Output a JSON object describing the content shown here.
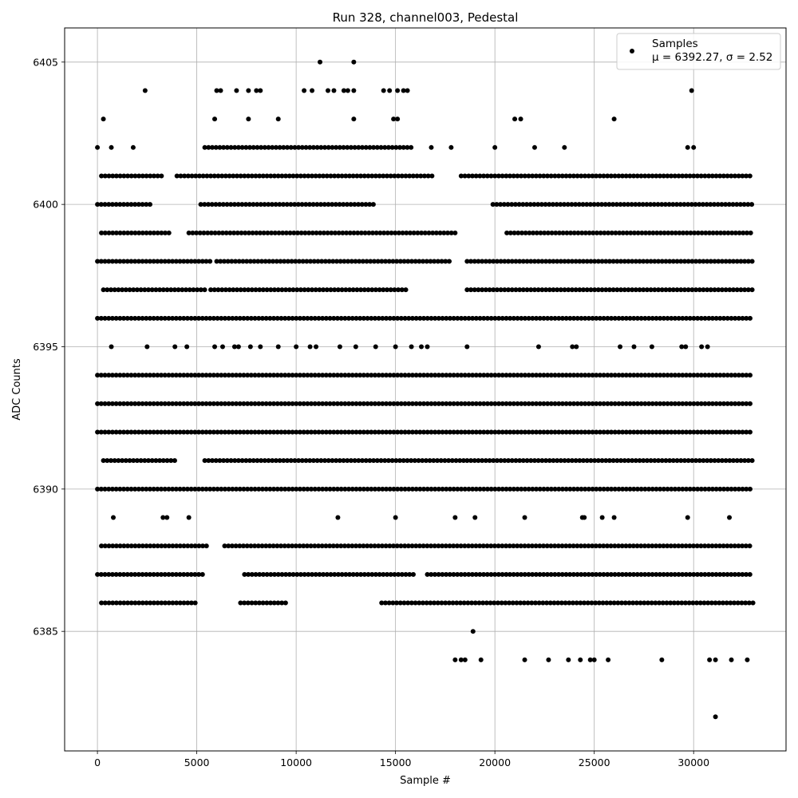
{
  "chart_data": {
    "type": "scatter",
    "title": "Run 328, channel003, Pedestal",
    "xlabel": "Sample #",
    "ylabel": "ADC Counts",
    "xlim": [
      -1650,
      34650
    ],
    "ylim": [
      6380.8,
      6406.2
    ],
    "xticks": [
      0,
      5000,
      10000,
      15000,
      20000,
      25000,
      30000
    ],
    "yticks": [
      6385,
      6390,
      6395,
      6400,
      6405
    ],
    "grid": true,
    "legend_position": "top-right",
    "marker_color": "#000000",
    "sample_count": 33000,
    "series": [
      {
        "name": "Samples",
        "legend_stats": "μ = 6392.27, σ = 2.52",
        "level_segments": [
          {
            "y": 6390,
            "segments": [
              [
                0,
                33000
              ]
            ]
          },
          {
            "y": 6392,
            "segments": [
              [
                0,
                33000
              ]
            ]
          },
          {
            "y": 6393,
            "segments": [
              [
                0,
                33000
              ]
            ]
          },
          {
            "y": 6394,
            "segments": [
              [
                0,
                33000
              ]
            ]
          },
          {
            "y": 6396,
            "segments": [
              [
                0,
                33000
              ]
            ]
          },
          {
            "y": 6387,
            "segments": [
              [
                0,
                5400
              ],
              [
                7400,
                16000
              ],
              [
                16600,
                33000
              ]
            ]
          },
          {
            "y": 6388,
            "segments": [
              [
                200,
                5600
              ],
              [
                6400,
                33000
              ]
            ]
          },
          {
            "y": 6398,
            "segments": [
              [
                0,
                5800
              ],
              [
                6000,
                17800
              ],
              [
                18600,
                33000
              ]
            ]
          },
          {
            "y": 6397,
            "segments": [
              [
                300,
                5500
              ],
              [
                5700,
                15700
              ],
              [
                18600,
                33000
              ]
            ]
          },
          {
            "y": 6391,
            "segments": [
              [
                300,
                4000
              ],
              [
                5400,
                18600
              ],
              [
                18600,
                33000
              ]
            ]
          },
          {
            "y": 6386,
            "segments": [
              [
                200,
                5000
              ],
              [
                7200,
                9500
              ],
              [
                14300,
                33000
              ]
            ]
          },
          {
            "y": 6399,
            "segments": [
              [
                200,
                3600
              ],
              [
                4600,
                18000
              ],
              [
                20600,
                33000
              ]
            ]
          },
          {
            "y": 6401,
            "segments": [
              [
                200,
                3400
              ],
              [
                4000,
                17000
              ],
              [
                18300,
                33000
              ]
            ]
          },
          {
            "y": 6400,
            "segments": [
              [
                0,
                2800
              ],
              [
                5200,
                14000
              ],
              [
                19900,
                33000
              ]
            ]
          },
          {
            "y": 6402,
            "segments": [
              [
                5400,
                15900
              ]
            ]
          }
        ],
        "points": [
          [
            0,
            6402
          ],
          [
            700,
            6402
          ],
          [
            1800,
            6402
          ],
          [
            16800,
            6402
          ],
          [
            17800,
            6402
          ],
          [
            20000,
            6402
          ],
          [
            22000,
            6402
          ],
          [
            23500,
            6402
          ],
          [
            29700,
            6402
          ],
          [
            30000,
            6402
          ],
          [
            300,
            6403
          ],
          [
            5900,
            6403
          ],
          [
            7600,
            6403
          ],
          [
            9100,
            6403
          ],
          [
            12900,
            6403
          ],
          [
            14900,
            6403
          ],
          [
            15100,
            6403
          ],
          [
            21000,
            6403
          ],
          [
            21300,
            6403
          ],
          [
            26000,
            6403
          ],
          [
            2400,
            6404
          ],
          [
            6000,
            6404
          ],
          [
            6200,
            6404
          ],
          [
            7000,
            6404
          ],
          [
            7600,
            6404
          ],
          [
            8000,
            6404
          ],
          [
            8200,
            6404
          ],
          [
            10400,
            6404
          ],
          [
            10800,
            6404
          ],
          [
            11600,
            6404
          ],
          [
            11900,
            6404
          ],
          [
            12400,
            6404
          ],
          [
            12600,
            6404
          ],
          [
            12900,
            6404
          ],
          [
            14400,
            6404
          ],
          [
            14700,
            6404
          ],
          [
            15100,
            6404
          ],
          [
            15400,
            6404
          ],
          [
            15600,
            6404
          ],
          [
            29900,
            6404
          ],
          [
            11200,
            6405
          ],
          [
            12900,
            6405
          ],
          [
            700,
            6395
          ],
          [
            2500,
            6395
          ],
          [
            3900,
            6395
          ],
          [
            4500,
            6395
          ],
          [
            5900,
            6395
          ],
          [
            6300,
            6395
          ],
          [
            6900,
            6395
          ],
          [
            7100,
            6395
          ],
          [
            7700,
            6395
          ],
          [
            8200,
            6395
          ],
          [
            9100,
            6395
          ],
          [
            10000,
            6395
          ],
          [
            10700,
            6395
          ],
          [
            11000,
            6395
          ],
          [
            12200,
            6395
          ],
          [
            13000,
            6395
          ],
          [
            14000,
            6395
          ],
          [
            15000,
            6395
          ],
          [
            15800,
            6395
          ],
          [
            16300,
            6395
          ],
          [
            16600,
            6395
          ],
          [
            18600,
            6395
          ],
          [
            22200,
            6395
          ],
          [
            23900,
            6395
          ],
          [
            24100,
            6395
          ],
          [
            26300,
            6395
          ],
          [
            27000,
            6395
          ],
          [
            27900,
            6395
          ],
          [
            29400,
            6395
          ],
          [
            29600,
            6395
          ],
          [
            30400,
            6395
          ],
          [
            30700,
            6395
          ],
          [
            800,
            6389
          ],
          [
            3300,
            6389
          ],
          [
            3500,
            6389
          ],
          [
            4600,
            6389
          ],
          [
            12100,
            6389
          ],
          [
            15000,
            6389
          ],
          [
            18000,
            6389
          ],
          [
            19000,
            6389
          ],
          [
            21500,
            6389
          ],
          [
            24400,
            6389
          ],
          [
            24500,
            6389
          ],
          [
            25400,
            6389
          ],
          [
            26000,
            6389
          ],
          [
            29700,
            6389
          ],
          [
            31800,
            6389
          ],
          [
            18900,
            6385
          ],
          [
            18000,
            6384
          ],
          [
            18300,
            6384
          ],
          [
            18500,
            6384
          ],
          [
            19300,
            6384
          ],
          [
            21500,
            6384
          ],
          [
            22700,
            6384
          ],
          [
            23700,
            6384
          ],
          [
            24300,
            6384
          ],
          [
            24800,
            6384
          ],
          [
            25000,
            6384
          ],
          [
            25700,
            6384
          ],
          [
            28400,
            6384
          ],
          [
            30800,
            6384
          ],
          [
            31100,
            6384
          ],
          [
            31900,
            6384
          ],
          [
            32700,
            6384
          ],
          [
            31100,
            6382
          ]
        ]
      }
    ]
  }
}
